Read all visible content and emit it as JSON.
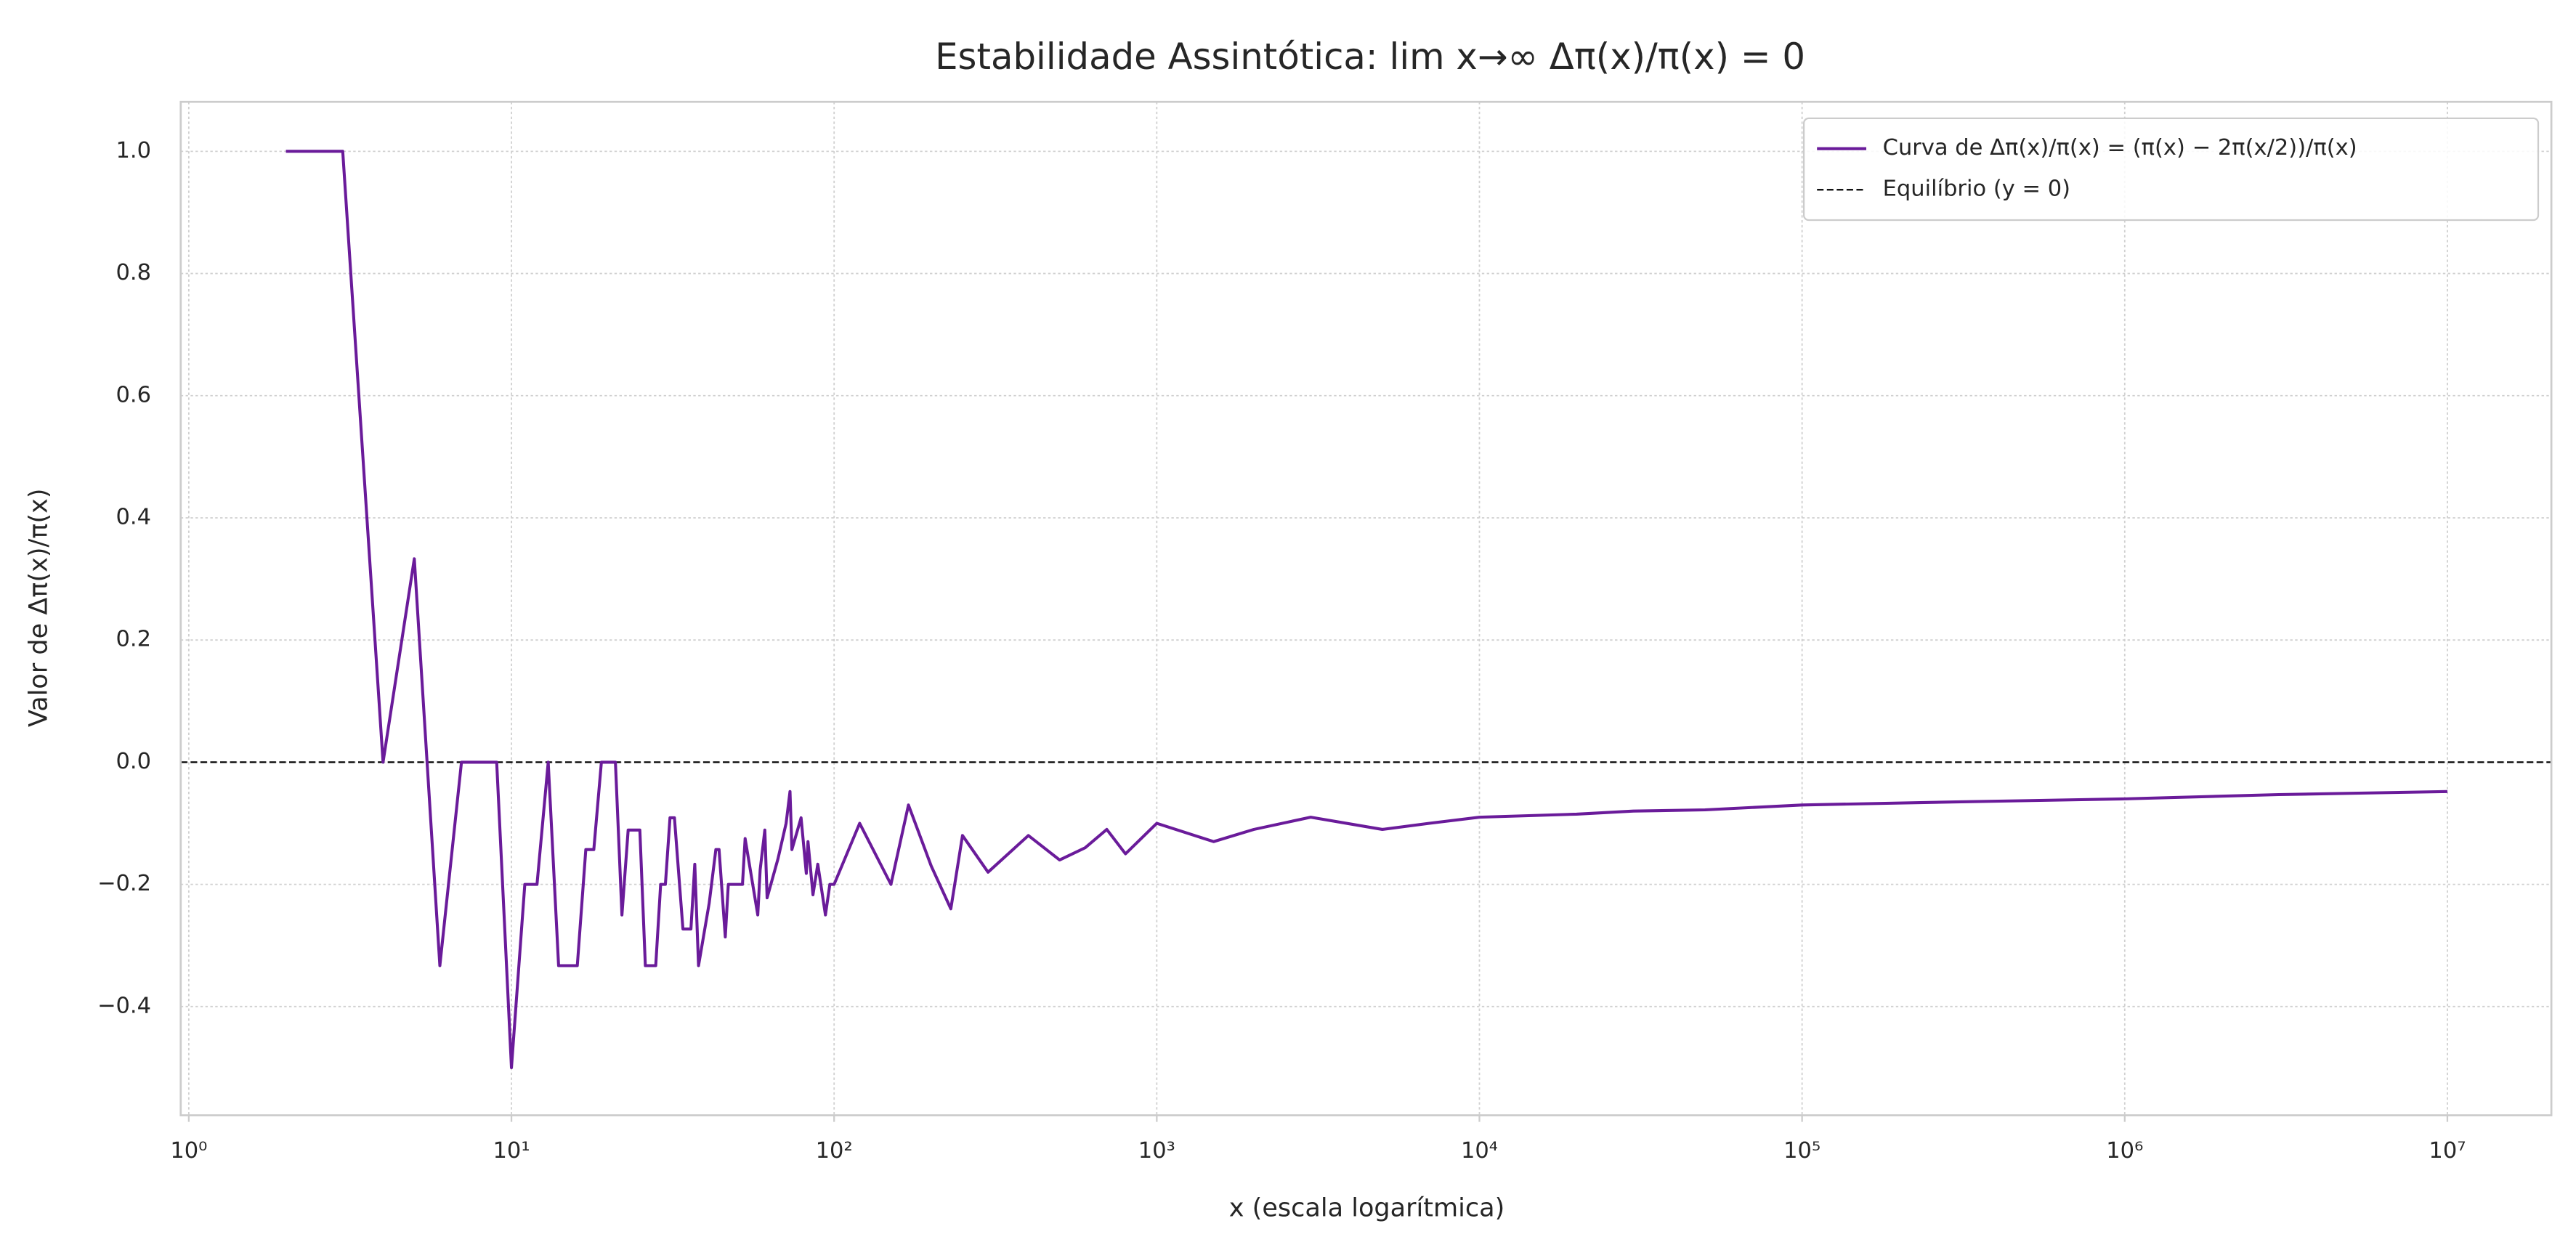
{
  "chart_data": {
    "type": "line",
    "title": "Estabilidade Assintótica: lim x→∞ Δπ(x)/π(x) = 0",
    "x_label": "x (escala logarítmica)",
    "y_label": "Valor de Δπ(x)/π(x)",
    "x": [
      2,
      3,
      4,
      5,
      6,
      7,
      8,
      9,
      10,
      11,
      12,
      13,
      14,
      16,
      17,
      18,
      19,
      20,
      21,
      22,
      23,
      25,
      26,
      28,
      29,
      30,
      31,
      32,
      34,
      36,
      37,
      38,
      41,
      43,
      44,
      46,
      47,
      50,
      52,
      53,
      58,
      59,
      61,
      62,
      67,
      71,
      73,
      74,
      79,
      82,
      83,
      86,
      89,
      94,
      97,
      100,
      120,
      150,
      170,
      200,
      230,
      250,
      300,
      400,
      500,
      600,
      700,
      800,
      1000,
      1500,
      2000,
      3000,
      5000,
      7000,
      10000,
      20000,
      30000,
      50000,
      100000,
      300000,
      1000000,
      3000000,
      10000000
    ],
    "series": [
      {
        "name": "Curva de Δπ(x)/π(x) = (π(x) − 2π(x/2))/π(x)",
        "color": "#6a1b9a",
        "values": [
          1,
          1,
          0,
          0.333,
          -0.333,
          0,
          0,
          0,
          -0.5,
          -0.2,
          -0.2,
          0,
          -0.333,
          -0.333,
          -0.143,
          -0.143,
          0,
          0,
          0,
          -0.25,
          -0.111,
          -0.111,
          -0.333,
          -0.333,
          -0.2,
          -0.2,
          -0.091,
          -0.091,
          -0.273,
          -0.273,
          -0.167,
          -0.333,
          -0.231,
          -0.143,
          -0.143,
          -0.286,
          -0.2,
          -0.2,
          -0.2,
          -0.125,
          -0.25,
          -0.176,
          -0.111,
          -0.222,
          -0.158,
          -0.1,
          -0.048,
          -0.143,
          -0.091,
          -0.182,
          -0.13,
          -0.217,
          -0.167,
          -0.25,
          -0.2,
          -0.2,
          -0.1,
          -0.2,
          -0.07,
          -0.17,
          -0.24,
          -0.12,
          -0.18,
          -0.12,
          -0.16,
          -0.14,
          -0.11,
          -0.15,
          -0.1,
          -0.13,
          -0.11,
          -0.09,
          -0.11,
          -0.1,
          -0.09,
          -0.085,
          -0.08,
          -0.078,
          -0.07,
          -0.065,
          -0.06,
          -0.053,
          -0.048
        ]
      }
    ],
    "reference_lines": [
      {
        "name": "Equilíbrio (y = 0)",
        "value": 0,
        "color": "#000000",
        "style": "dashed"
      }
    ],
    "x_scale": "log",
    "xlim": [
      0.944,
      21000000
    ],
    "xticks": [
      {
        "value": 1,
        "label": "10⁰"
      },
      {
        "value": 10,
        "label": "10¹"
      },
      {
        "value": 100,
        "label": "10²"
      },
      {
        "value": 1000,
        "label": "10³"
      },
      {
        "value": 10000,
        "label": "10⁴"
      },
      {
        "value": 100000,
        "label": "10⁵"
      },
      {
        "value": 1000000,
        "label": "10⁶"
      },
      {
        "value": 10000000,
        "label": "10⁷"
      }
    ],
    "ylim": [
      -0.578,
      1.081
    ],
    "yticks": [
      {
        "value": -0.4,
        "label": "−0.4"
      },
      {
        "value": -0.2,
        "label": "−0.2"
      },
      {
        "value": 0,
        "label": "0.0"
      },
      0.2,
      0.4,
      0.6,
      0.8,
      {
        "value": 1,
        "label": "1.0"
      }
    ],
    "grid": true,
    "legend": "upper right"
  }
}
